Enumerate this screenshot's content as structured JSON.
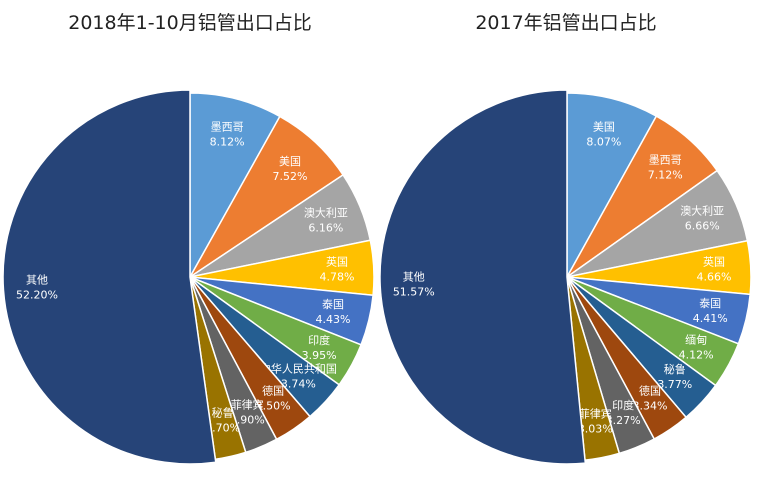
{
  "chart_data": [
    {
      "type": "pie",
      "title": "2018年1-10月铝管出口占比",
      "slices": [
        {
          "label": "墨西哥",
          "value": 8.12,
          "display": "8.12%",
          "color": "#5b9bd5"
        },
        {
          "label": "美国",
          "value": 7.52,
          "display": "7.52%",
          "color": "#ed7d31"
        },
        {
          "label": "澳大利亚",
          "value": 6.16,
          "display": "6.16%",
          "color": "#a5a5a5"
        },
        {
          "label": "英国",
          "value": 4.78,
          "display": "4.78%",
          "color": "#ffc000"
        },
        {
          "label": "泰国",
          "value": 4.43,
          "display": "4.43%",
          "color": "#4472c4"
        },
        {
          "label": "印度",
          "value": 3.95,
          "display": "3.95%",
          "color": "#70ad47"
        },
        {
          "label": "中华人民共和国",
          "value": 3.74,
          "display": "3.74%",
          "color": "#255e91"
        },
        {
          "label": "德国",
          "value": 3.5,
          "display": "3.50%",
          "color": "#9e480e"
        },
        {
          "label": "菲律宾",
          "value": 2.9,
          "display": "2.90%",
          "color": "#636363"
        },
        {
          "label": "秘鲁",
          "value": 2.7,
          "display": "2.70%",
          "color": "#997300"
        },
        {
          "label": "其他",
          "value": 52.2,
          "display": "52.20%",
          "color": "#264478"
        }
      ]
    },
    {
      "type": "pie",
      "title": "2017年铝管出口占比",
      "slices": [
        {
          "label": "美国",
          "value": 8.07,
          "display": "8.07%",
          "color": "#5b9bd5"
        },
        {
          "label": "墨西哥",
          "value": 7.12,
          "display": "7.12%",
          "color": "#ed7d31"
        },
        {
          "label": "澳大利亚",
          "value": 6.66,
          "display": "6.66%",
          "color": "#a5a5a5"
        },
        {
          "label": "英国",
          "value": 4.66,
          "display": "4.66%",
          "color": "#ffc000"
        },
        {
          "label": "泰国",
          "value": 4.41,
          "display": "4.41%",
          "color": "#4472c4"
        },
        {
          "label": "缅甸",
          "value": 4.12,
          "display": "4.12%",
          "color": "#70ad47"
        },
        {
          "label": "秘鲁",
          "value": 3.77,
          "display": "3.77%",
          "color": "#255e91"
        },
        {
          "label": "德国",
          "value": 3.34,
          "display": "3.34%",
          "color": "#9e480e"
        },
        {
          "label": "印度",
          "value": 3.27,
          "display": "3.27%",
          "color": "#636363"
        },
        {
          "label": "菲律宾",
          "value": 3.03,
          "display": "3.03%",
          "color": "#997300"
        },
        {
          "label": "其他",
          "value": 51.57,
          "display": "51.57%",
          "color": "#264478"
        }
      ]
    }
  ]
}
